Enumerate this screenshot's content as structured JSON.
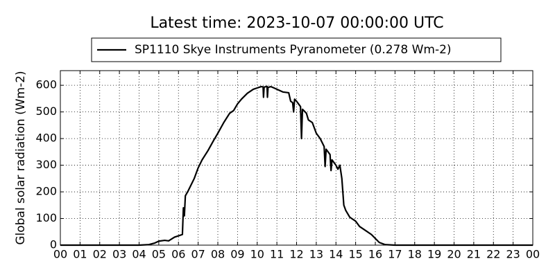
{
  "chart_data": {
    "type": "line",
    "title": "Latest time: 2023-10-07 00:00:00 UTC",
    "y_label": "Global solar radiation (Wm-2)",
    "x": [
      0,
      4,
      4.5,
      4.8,
      5.0,
      5.3,
      5.5,
      5.8,
      6.0,
      6.2,
      6.25,
      6.3,
      6.35,
      6.5,
      6.8,
      7.0,
      7.2,
      7.5,
      7.8,
      8.0,
      8.3,
      8.6,
      8.8,
      9.0,
      9.2,
      9.5,
      9.8,
      10.0,
      10.2,
      10.3,
      10.32,
      10.35,
      10.5,
      10.52,
      10.55,
      10.7,
      11.0,
      11.3,
      11.6,
      11.7,
      11.8,
      11.85,
      11.9,
      12.0,
      12.2,
      12.25,
      12.3,
      12.5,
      12.6,
      12.8,
      13.0,
      13.2,
      13.4,
      13.45,
      13.5,
      13.7,
      13.75,
      13.8,
      14.0,
      14.1,
      14.2,
      14.3,
      14.4,
      14.5,
      14.7,
      15.0,
      15.2,
      15.5,
      15.8,
      16.0,
      16.2,
      16.5,
      17,
      24
    ],
    "series": [
      {
        "name": "SP1110 Skye Instruments Pyranometer (0.278 Wm-2)",
        "color": "#000000",
        "values": [
          0,
          0,
          2,
          8,
          15,
          18,
          16,
          30,
          35,
          40,
          140,
          110,
          185,
          205,
          250,
          290,
          320,
          355,
          395,
          420,
          460,
          495,
          505,
          530,
          548,
          570,
          585,
          590,
          595,
          594,
          555,
          593,
          596,
          555,
          592,
          595,
          585,
          575,
          572,
          540,
          535,
          500,
          548,
          540,
          520,
          400,
          510,
          495,
          470,
          460,
          420,
          400,
          370,
          295,
          360,
          340,
          280,
          320,
          300,
          285,
          300,
          250,
          150,
          130,
          105,
          90,
          70,
          55,
          40,
          25,
          10,
          2,
          0,
          0
        ]
      }
    ],
    "xlim": [
      0,
      24
    ],
    "ylim": [
      0,
      655
    ],
    "xticks": [
      {
        "value": 0,
        "label": "00"
      },
      {
        "value": 1,
        "label": "01"
      },
      {
        "value": 2,
        "label": "02"
      },
      {
        "value": 3,
        "label": "03"
      },
      {
        "value": 4,
        "label": "04"
      },
      {
        "value": 5,
        "label": "05"
      },
      {
        "value": 6,
        "label": "06"
      },
      {
        "value": 7,
        "label": "07"
      },
      {
        "value": 8,
        "label": "08"
      },
      {
        "value": 9,
        "label": "09"
      },
      {
        "value": 10,
        "label": "10"
      },
      {
        "value": 11,
        "label": "11"
      },
      {
        "value": 12,
        "label": "12"
      },
      {
        "value": 13,
        "label": "13"
      },
      {
        "value": 14,
        "label": "14"
      },
      {
        "value": 15,
        "label": "15"
      },
      {
        "value": 16,
        "label": "16"
      },
      {
        "value": 17,
        "label": "17"
      },
      {
        "value": 18,
        "label": "18"
      },
      {
        "value": 19,
        "label": "19"
      },
      {
        "value": 20,
        "label": "20"
      },
      {
        "value": 21,
        "label": "21"
      },
      {
        "value": 22,
        "label": "22"
      },
      {
        "value": 23,
        "label": "23"
      },
      {
        "value": 24,
        "label": "00"
      }
    ],
    "yticks": [
      0,
      100,
      200,
      300,
      400,
      500,
      600
    ],
    "grid": true,
    "legend": "top"
  }
}
